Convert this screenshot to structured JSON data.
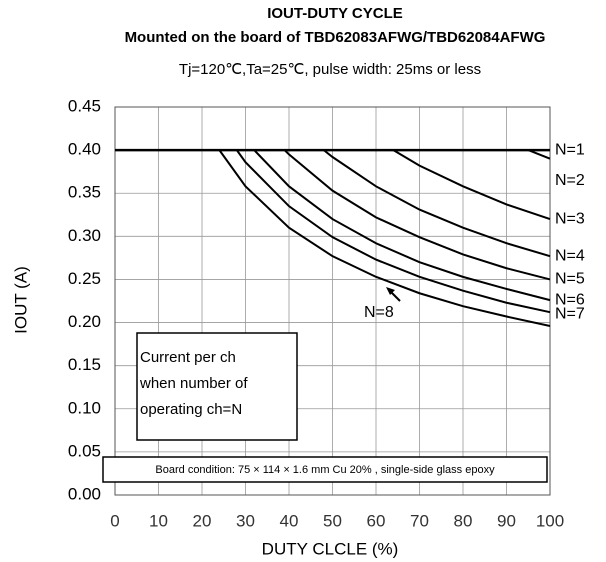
{
  "chart_data": {
    "type": "line",
    "title": "IOUT-DUTY CYCLE",
    "subtitle": "Mounted on the board of TBD62083AFWG/TBD62084AFWG",
    "conditions": "Tj=120℃,Ta=25℃, pulse width: 25ms or less",
    "xlabel": "DUTY CLCLE (%)",
    "ylabel": "IOUT (A)",
    "xlim": [
      0,
      100
    ],
    "xticks": [
      0,
      10,
      20,
      30,
      40,
      50,
      60,
      70,
      80,
      90,
      100
    ],
    "ylim": [
      0,
      0.45
    ],
    "yticks": [
      {
        "value": 0,
        "label": "0.00"
      },
      {
        "value": 0.05,
        "label": "0.05"
      },
      {
        "value": 0.1,
        "label": "0.10"
      },
      {
        "value": 0.15,
        "label": "0.15"
      },
      {
        "value": 0.2,
        "label": "0.20"
      },
      {
        "value": 0.25,
        "label": "0.25"
      },
      {
        "value": 0.3,
        "label": "0.30"
      },
      {
        "value": 0.35,
        "label": "0.35"
      },
      {
        "value": 0.4,
        "label": "0.40"
      },
      {
        "value": 0.45,
        "label": "0.45"
      }
    ],
    "grid": true,
    "series": [
      {
        "name": "N=1",
        "color": "#000000",
        "x": [
          0,
          100
        ],
        "values": [
          0.4,
          0.4
        ]
      },
      {
        "name": "N=2",
        "color": "#000000",
        "x": [
          95,
          100
        ],
        "values": [
          0.4,
          0.39
        ]
      },
      {
        "name": "N=3",
        "color": "#000000",
        "x": [
          64,
          70,
          80,
          90,
          100
        ],
        "values": [
          0.4,
          0.382,
          0.358,
          0.337,
          0.32
        ]
      },
      {
        "name": "N=4",
        "color": "#000000",
        "x": [
          48,
          50,
          60,
          70,
          80,
          90,
          100
        ],
        "values": [
          0.4,
          0.392,
          0.358,
          0.331,
          0.31,
          0.292,
          0.277
        ]
      },
      {
        "name": "N=5",
        "color": "#000000",
        "x": [
          39,
          40,
          50,
          60,
          70,
          80,
          90,
          100
        ],
        "values": [
          0.4,
          0.395,
          0.353,
          0.322,
          0.299,
          0.279,
          0.263,
          0.25
        ]
      },
      {
        "name": "N=6",
        "color": "#000000",
        "x": [
          32,
          40,
          50,
          60,
          70,
          80,
          90,
          100
        ],
        "values": [
          0.4,
          0.358,
          0.32,
          0.292,
          0.27,
          0.253,
          0.239,
          0.226
        ]
      },
      {
        "name": "N=7",
        "color": "#000000",
        "x": [
          28,
          30,
          40,
          50,
          60,
          70,
          80,
          90,
          100
        ],
        "values": [
          0.4,
          0.386,
          0.335,
          0.299,
          0.273,
          0.253,
          0.237,
          0.223,
          0.212
        ]
      },
      {
        "name": "N=8",
        "color": "#000000",
        "x": [
          24,
          30,
          40,
          50,
          60,
          70,
          80,
          90,
          100
        ],
        "values": [
          0.4,
          0.358,
          0.31,
          0.277,
          0.253,
          0.234,
          0.219,
          0.207,
          0.196
        ]
      }
    ],
    "legend_note": [
      "Current per ch",
      "when number of",
      "operating ch=N"
    ],
    "board_note": "Board condition: 75 × 114 × 1.6 mm Cu 20% , single-side glass epoxy"
  }
}
